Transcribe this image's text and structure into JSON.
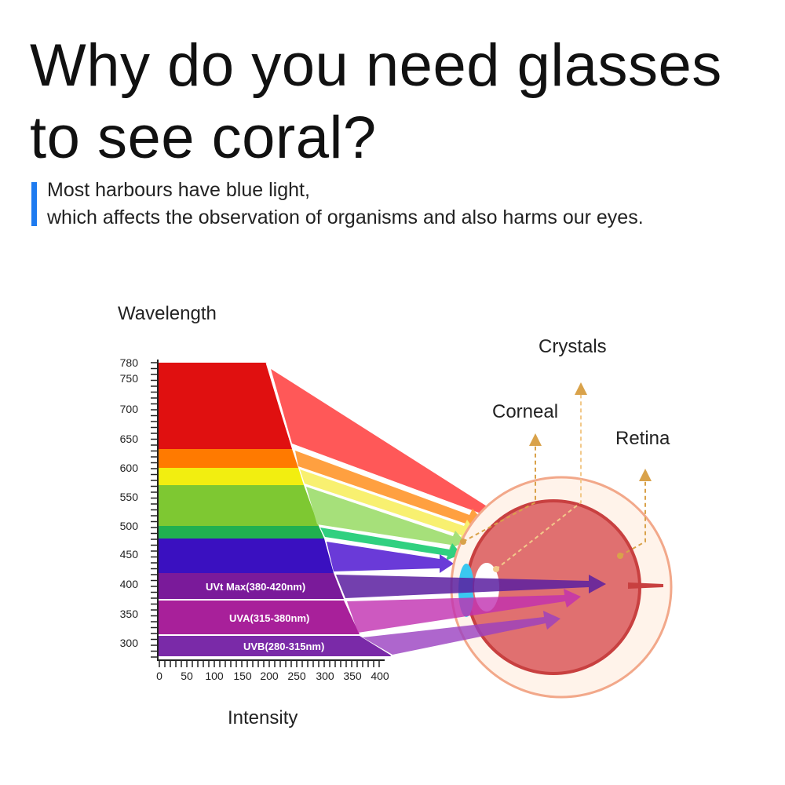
{
  "headline": "Why do you need glasses to see coral?",
  "subtext": {
    "line1": "Most harbours have blue light,",
    "line2": "which affects the observation of organisms and also harms our eyes."
  },
  "accent_color": "#1e7bf0",
  "diagram": {
    "y_axis_title": "Wavelength",
    "x_axis_title": "Intensity",
    "y_ticks": [
      "780",
      "750",
      "700",
      "650",
      "600",
      "550",
      "500",
      "450",
      "400",
      "350",
      "300"
    ],
    "x_ticks": [
      "0",
      "50",
      "100",
      "150",
      "200",
      "250",
      "300",
      "350",
      "400"
    ],
    "bands": [
      {
        "color": "#e01010",
        "from": 650,
        "to": 780
      },
      {
        "color": "#ff7a00",
        "from": 615,
        "to": 650
      },
      {
        "color": "#f2ee10",
        "from": 580,
        "to": 615
      },
      {
        "color": "#7ec832",
        "from": 510,
        "to": 580
      },
      {
        "color": "#20b050",
        "from": 490,
        "to": 510
      },
      {
        "color": "#3a10c0",
        "from": 425,
        "to": 490
      },
      {
        "color": "#7a1a9a",
        "from": 380,
        "to": 420,
        "label": "UVt Max(380-420nm)"
      },
      {
        "color": "#a8209a",
        "from": 315,
        "to": 380,
        "label": "UVA(315-380nm)"
      },
      {
        "color": "#7a2aa8",
        "from": 280,
        "to": 315,
        "label": "UVB(280-315nm)"
      }
    ],
    "eye_labels": {
      "crystals": "Crystals",
      "corneal": "Corneal",
      "retina": "Retina"
    }
  }
}
